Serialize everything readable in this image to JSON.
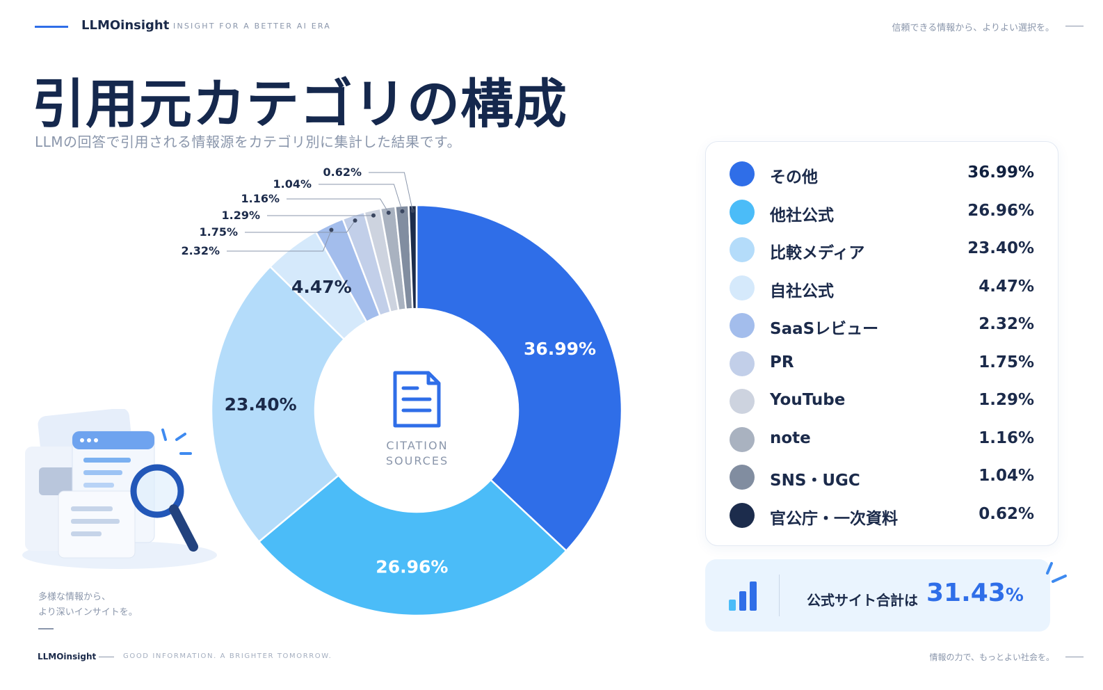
{
  "header": {
    "brand": "LLMOinsight",
    "tagline": "INSIGHT FOR A BETTER AI ERA",
    "right_text": "信頼できる情報から、よりよい選択を。"
  },
  "page": {
    "title": "引用元カテゴリの構成",
    "subtitle": "LLMの回答で引用される情報源をカテゴリ別に集計した結果です。"
  },
  "chart_data": {
    "type": "pie",
    "donut": true,
    "unit": "%",
    "center_label": [
      "CITATION",
      "SOURCES"
    ],
    "categories": [
      "その他",
      "他社公式",
      "比較メディア",
      "自社公式",
      "SaaSレビュー",
      "PR",
      "YouTube",
      "note",
      "SNS・UGC",
      "官公庁・一次資料"
    ],
    "values": [
      36.99,
      26.96,
      23.4,
      4.47,
      2.32,
      1.75,
      1.29,
      1.16,
      1.04,
      0.62
    ],
    "labels": [
      "36.99%",
      "26.96%",
      "23.40%",
      "4.47%",
      "2.32%",
      "1.75%",
      "1.29%",
      "1.16%",
      "1.04%",
      "0.62%"
    ],
    "colors": [
      "#2f6ee8",
      "#4bbcf8",
      "#b4dcfa",
      "#d5e9fb",
      "#a3bdec",
      "#c2cfe9",
      "#cdd3df",
      "#a9b2c0",
      "#818da0",
      "#1c2c4c"
    ],
    "legend_position": "right"
  },
  "summary": {
    "label": "公式サイト合計は",
    "value": "31.43",
    "unit": "%"
  },
  "note": {
    "line1": "多様な情報から、",
    "line2": "より深いインサイトを。"
  },
  "footer": {
    "brand": "LLMOinsight",
    "tagline": "GOOD INFORMATION. A BRIGHTER TOMORROW.",
    "right_text": "情報の力で、もっとよい社会を。"
  }
}
